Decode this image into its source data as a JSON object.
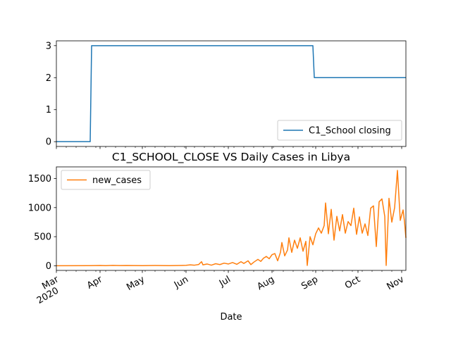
{
  "chart_data": [
    {
      "type": "line",
      "title": "",
      "xlabel": "",
      "ylabel": "",
      "x_range": [
        "2020-03-01",
        "2020-11-04"
      ],
      "ylim": [
        -0.15,
        3.15
      ],
      "yticks": [
        0,
        1,
        2,
        3
      ],
      "grid": false,
      "legend_position": "lower-right",
      "series": [
        {
          "name": "C1_School closing",
          "color": "#1f77b4",
          "points": [
            {
              "x": "2020-03-01",
              "y": 0
            },
            {
              "x": "2020-03-25",
              "y": 0
            },
            {
              "x": "2020-03-26",
              "y": 3
            },
            {
              "x": "2020-08-30",
              "y": 3
            },
            {
              "x": "2020-08-31",
              "y": 2
            },
            {
              "x": "2020-11-04",
              "y": 2
            }
          ]
        }
      ]
    },
    {
      "type": "line",
      "title": "C1_SCHOOL_CLOSE VS Daily Cases in Libya",
      "xlabel": "Date",
      "ylabel": "",
      "x_range": [
        "2020-03-01",
        "2020-11-04"
      ],
      "ylim": [
        -80,
        1700
      ],
      "yticks": [
        0,
        500,
        1000,
        1500
      ],
      "xticks": [
        {
          "date": "2020-03-01",
          "label": "Mar",
          "sublabel": "2020"
        },
        {
          "date": "2020-04-01",
          "label": "Apr"
        },
        {
          "date": "2020-05-01",
          "label": "May"
        },
        {
          "date": "2020-06-01",
          "label": "Jun"
        },
        {
          "date": "2020-07-01",
          "label": "Jul"
        },
        {
          "date": "2020-08-01",
          "label": "Aug"
        },
        {
          "date": "2020-09-01",
          "label": "Sep"
        },
        {
          "date": "2020-10-01",
          "label": "Oct"
        },
        {
          "date": "2020-11-01",
          "label": "Nov"
        }
      ],
      "grid": false,
      "legend_position": "upper-left",
      "series": [
        {
          "name": "new_cases",
          "color": "#ff7f0e",
          "points": [
            {
              "x": "2020-03-01",
              "y": 0
            },
            {
              "x": "2020-03-24",
              "y": 1
            },
            {
              "x": "2020-04-01",
              "y": 4
            },
            {
              "x": "2020-04-05",
              "y": 2
            },
            {
              "x": "2020-04-10",
              "y": 6
            },
            {
              "x": "2020-04-15",
              "y": 3
            },
            {
              "x": "2020-04-20",
              "y": 5
            },
            {
              "x": "2020-05-01",
              "y": 2
            },
            {
              "x": "2020-05-10",
              "y": 4
            },
            {
              "x": "2020-05-20",
              "y": 1
            },
            {
              "x": "2020-05-28",
              "y": 5
            },
            {
              "x": "2020-06-01",
              "y": 8
            },
            {
              "x": "2020-06-04",
              "y": 15
            },
            {
              "x": "2020-06-07",
              "y": 10
            },
            {
              "x": "2020-06-10",
              "y": 22
            },
            {
              "x": "2020-06-12",
              "y": 70
            },
            {
              "x": "2020-06-13",
              "y": 15
            },
            {
              "x": "2020-06-16",
              "y": 30
            },
            {
              "x": "2020-06-19",
              "y": 10
            },
            {
              "x": "2020-06-22",
              "y": 35
            },
            {
              "x": "2020-06-25",
              "y": 20
            },
            {
              "x": "2020-06-28",
              "y": 45
            },
            {
              "x": "2020-07-01",
              "y": 30
            },
            {
              "x": "2020-07-04",
              "y": 55
            },
            {
              "x": "2020-07-07",
              "y": 25
            },
            {
              "x": "2020-07-10",
              "y": 70
            },
            {
              "x": "2020-07-12",
              "y": 40
            },
            {
              "x": "2020-07-15",
              "y": 85
            },
            {
              "x": "2020-07-17",
              "y": 20
            },
            {
              "x": "2020-07-19",
              "y": 60
            },
            {
              "x": "2020-07-22",
              "y": 110
            },
            {
              "x": "2020-07-24",
              "y": 75
            },
            {
              "x": "2020-07-26",
              "y": 130
            },
            {
              "x": "2020-07-28",
              "y": 160
            },
            {
              "x": "2020-07-30",
              "y": 120
            },
            {
              "x": "2020-08-01",
              "y": 190
            },
            {
              "x": "2020-08-03",
              "y": 210
            },
            {
              "x": "2020-08-05",
              "y": 85
            },
            {
              "x": "2020-08-07",
              "y": 230
            },
            {
              "x": "2020-08-08",
              "y": 400
            },
            {
              "x": "2020-08-10",
              "y": 170
            },
            {
              "x": "2020-08-12",
              "y": 270
            },
            {
              "x": "2020-08-13",
              "y": 480
            },
            {
              "x": "2020-08-15",
              "y": 230
            },
            {
              "x": "2020-08-17",
              "y": 440
            },
            {
              "x": "2020-08-19",
              "y": 300
            },
            {
              "x": "2020-08-21",
              "y": 480
            },
            {
              "x": "2020-08-23",
              "y": 250
            },
            {
              "x": "2020-08-25",
              "y": 420
            },
            {
              "x": "2020-08-26",
              "y": 5
            },
            {
              "x": "2020-08-28",
              "y": 500
            },
            {
              "x": "2020-08-30",
              "y": 360
            },
            {
              "x": "2020-09-01",
              "y": 550
            },
            {
              "x": "2020-09-03",
              "y": 650
            },
            {
              "x": "2020-09-05",
              "y": 560
            },
            {
              "x": "2020-09-07",
              "y": 690
            },
            {
              "x": "2020-09-08",
              "y": 1080
            },
            {
              "x": "2020-09-10",
              "y": 550
            },
            {
              "x": "2020-09-12",
              "y": 970
            },
            {
              "x": "2020-09-14",
              "y": 440
            },
            {
              "x": "2020-09-16",
              "y": 850
            },
            {
              "x": "2020-09-18",
              "y": 600
            },
            {
              "x": "2020-09-20",
              "y": 880
            },
            {
              "x": "2020-09-22",
              "y": 560
            },
            {
              "x": "2020-09-24",
              "y": 760
            },
            {
              "x": "2020-09-26",
              "y": 690
            },
            {
              "x": "2020-09-28",
              "y": 990
            },
            {
              "x": "2020-09-30",
              "y": 540
            },
            {
              "x": "2020-10-02",
              "y": 840
            },
            {
              "x": "2020-10-04",
              "y": 560
            },
            {
              "x": "2020-10-06",
              "y": 720
            },
            {
              "x": "2020-10-08",
              "y": 520
            },
            {
              "x": "2020-10-10",
              "y": 990
            },
            {
              "x": "2020-10-12",
              "y": 1030
            },
            {
              "x": "2020-10-14",
              "y": 330
            },
            {
              "x": "2020-10-16",
              "y": 1100
            },
            {
              "x": "2020-10-18",
              "y": 1150
            },
            {
              "x": "2020-10-20",
              "y": 850
            },
            {
              "x": "2020-10-21",
              "y": 5
            },
            {
              "x": "2020-10-23",
              "y": 1160
            },
            {
              "x": "2020-10-25",
              "y": 750
            },
            {
              "x": "2020-10-27",
              "y": 1000
            },
            {
              "x": "2020-10-29",
              "y": 1640
            },
            {
              "x": "2020-10-31",
              "y": 780
            },
            {
              "x": "2020-11-02",
              "y": 960
            },
            {
              "x": "2020-11-03",
              "y": 760
            },
            {
              "x": "2020-11-04",
              "y": 480
            }
          ]
        }
      ]
    }
  ]
}
